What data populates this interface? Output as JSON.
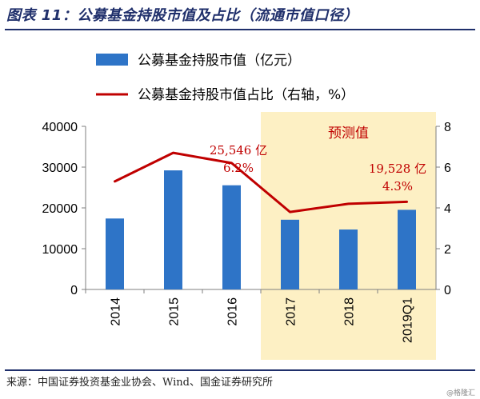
{
  "figure": {
    "title": "图表 11：公募基金持股市值及占比（流通市值口径）",
    "source": "来源：中国证券投资基金业协会、Wind、国金证券研究所",
    "watermark": "@格隆汇"
  },
  "chart_data": {
    "type": "bar+line",
    "categories": [
      "2014",
      "2015",
      "2016",
      "2017",
      "2018",
      "2019Q1"
    ],
    "series": [
      {
        "name": "公募基金持股市值（亿元）",
        "type": "bar",
        "axis": "left",
        "values": [
          17400,
          29200,
          25546,
          17100,
          14700,
          19528
        ],
        "color": "#2e74c7"
      },
      {
        "name": "公募基金持股市值占比（右轴，%）",
        "type": "line",
        "axis": "right",
        "values": [
          5.3,
          6.7,
          6.2,
          3.8,
          4.2,
          4.3
        ],
        "color": "#c00000"
      }
    ],
    "left_axis": {
      "ylim": [
        0,
        40000
      ],
      "ticks": [
        "0",
        "10000",
        "20000",
        "30000",
        "40000"
      ]
    },
    "right_axis": {
      "ylim": [
        0,
        8
      ],
      "ticks": [
        "0",
        "2",
        "4",
        "6",
        "8"
      ]
    },
    "forecast": {
      "label": "预测值",
      "from": "2017",
      "to": "2019Q1",
      "color": "#fdf0c4"
    },
    "annotations": [
      {
        "category": "2016",
        "lines": [
          "25,546 亿",
          "6.2%"
        ],
        "color": "#c00000"
      },
      {
        "category": "2019Q1",
        "lines": [
          "19,528 亿",
          "4.3%"
        ],
        "color": "#c00000"
      }
    ],
    "legend_position": "top-left",
    "grid": false
  }
}
